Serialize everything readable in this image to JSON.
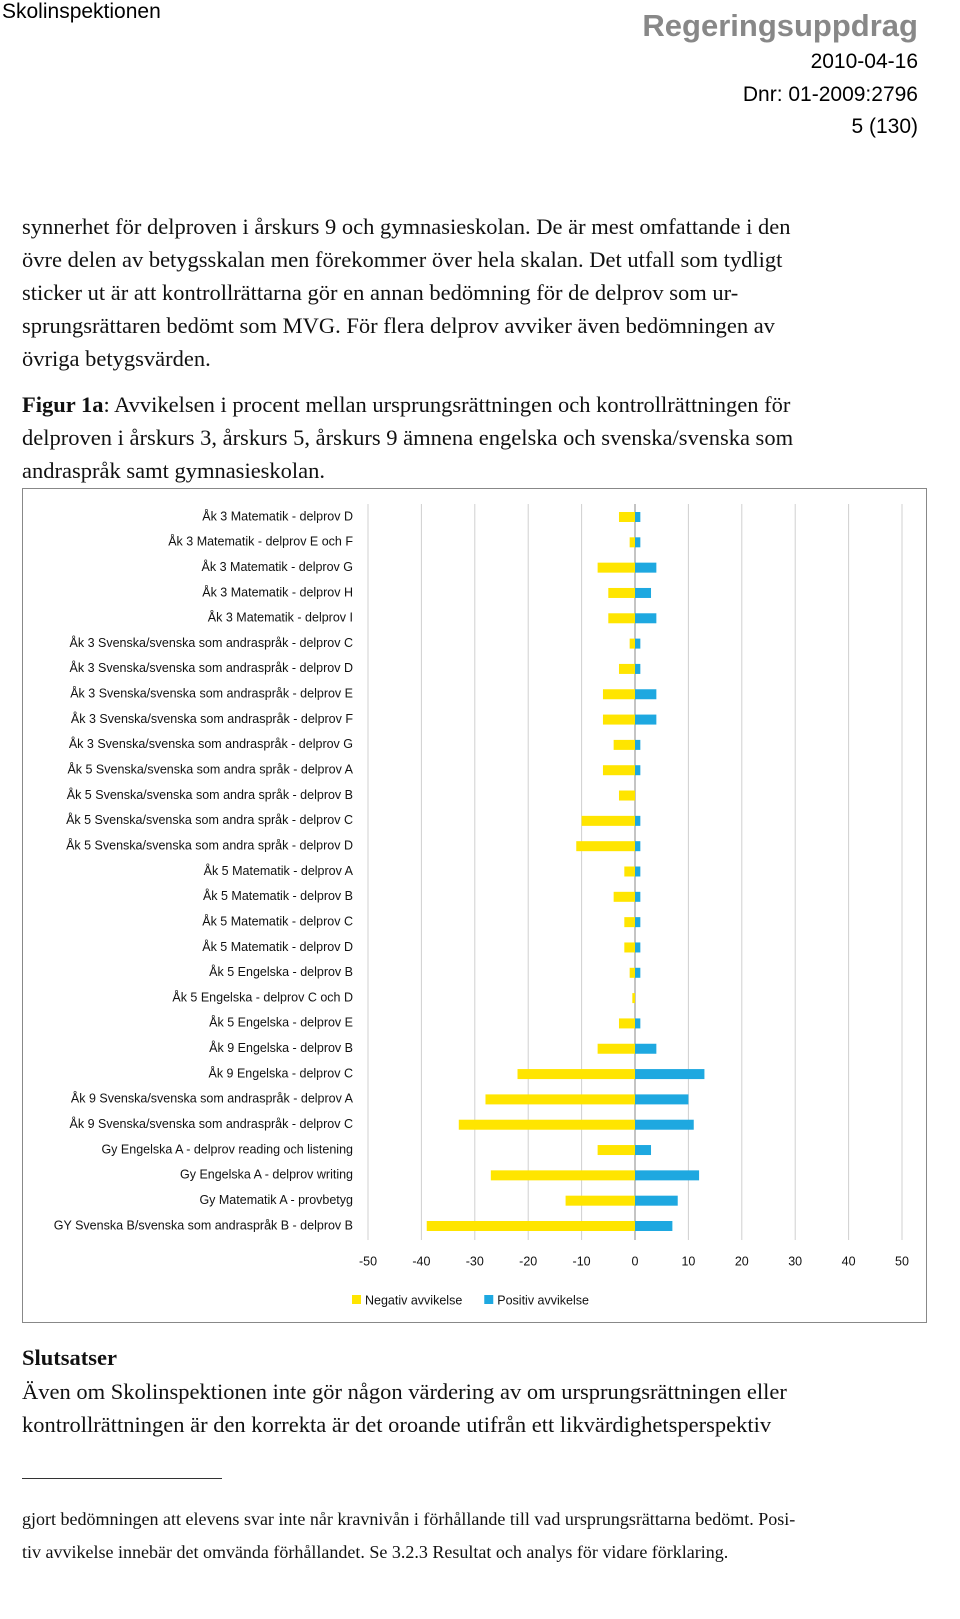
{
  "header": {
    "organization": "Skolinspektionen",
    "title": "Regeringsuppdrag",
    "date": "2010-04-16",
    "dnr": "Dnr: 01-2009:2796",
    "page": "5 (130)"
  },
  "paragraph": {
    "lines": [
      "synnerhet för delproven i årskurs 9 och gymnasieskolan. De är mest omfattande i den",
      "övre delen av betygsskalan men förekommer över hela skalan. Det utfall som tydligt",
      "sticker ut är att kontrollrättarna gör en annan bedömning för de delprov som ur-",
      "sprungsrättaren bedömt som MVG. För flera delprov avviker även bedömningen av",
      "övriga betygsvärden."
    ]
  },
  "caption": {
    "label": "Figur 1a",
    "lines": [
      ": Avvikelsen i procent mellan ursprungsrättningen och kontrollrättningen för",
      "delproven i årskurs 3, årskurs 5, årskurs 9 ämnena engelska och svenska/svenska som",
      "andraspråk samt gymnasieskolan."
    ]
  },
  "chart_data": {
    "type": "bar",
    "orientation": "horizontal",
    "categories": [
      "Åk 3 Matematik  - delprov D",
      "Åk 3 Matematik  - delprov E och F",
      "Åk 3 Matematik  - delprov G",
      "Åk 3 Matematik  - delprov H",
      "Åk 3 Matematik  - delprov I",
      "Åk 3 Svenska/svenska som andraspråk - delprov C",
      "Åk 3 Svenska/svenska som andraspråk - delprov D",
      "Åk 3 Svenska/svenska som andraspråk - delprov E",
      "Åk 3 Svenska/svenska som andraspråk - delprov F",
      "Åk 3 Svenska/svenska som andraspråk - delprov G",
      "Åk 5 Svenska/svenska som andra språk - delprov A",
      "Åk 5 Svenska/svenska som andra språk - delprov B",
      "Åk 5 Svenska/svenska som andra språk - delprov C",
      "Åk 5 Svenska/svenska som andra språk - delprov D",
      "Åk 5 Matematik  - delprov A",
      "Åk 5 Matematik  - delprov B",
      "Åk 5 Matematik  - delprov C",
      "Åk 5 Matematik  - delprov D",
      "Åk 5 Engelska - delprov B",
      "Åk 5  Engelska - delprov C och D",
      "Åk 5 Engelska - delprov E",
      "Åk 9 Engelska - delprov B",
      "Åk 9 Engelska - delprov C",
      "Åk 9 Svenska/svenska som andraspråk - delprov A",
      "Åk 9 Svenska/svenska som andraspråk - delprov C",
      "Gy Engelska  A - delprov reading  och listening",
      "Gy Engelska  A - delprov writing",
      "Gy Matematik  A - provbetyg",
      "GY Svenska B/svenska som andraspråk  B - delprov B"
    ],
    "series": [
      {
        "name": "Negativ avvikelse",
        "color": "#ffe500",
        "values": [
          -3,
          -1,
          -7,
          -5,
          -5,
          -1,
          -3,
          -6,
          -6,
          -4,
          -6,
          -3,
          -10,
          -11,
          -2,
          -4,
          -2,
          -2,
          -1,
          -0.5,
          -3,
          -7,
          -22,
          -28,
          -33,
          -7,
          -27,
          -13,
          -39
        ]
      },
      {
        "name": "Positiv avvikelse",
        "color": "#1ea8e0",
        "values": [
          1,
          1,
          4,
          3,
          4,
          1,
          1,
          4,
          4,
          1,
          1,
          0,
          1,
          1,
          1,
          1,
          1,
          1,
          1,
          0,
          1,
          4,
          13,
          10,
          11,
          3,
          12,
          8,
          7
        ]
      }
    ],
    "xlim": [
      -50,
      50
    ],
    "xticks": [
      -50,
      -40,
      -30,
      -20,
      -10,
      0,
      10,
      20,
      30,
      40,
      50
    ],
    "grid": true,
    "legend": "bottom"
  },
  "conclusion": {
    "heading": "Slutsatser",
    "lines": [
      "Även om Skolinspektionen inte gör någon värdering av om ursprungsrättningen eller",
      "kontrollrättningen är den korrekta är det oroande utifrån ett likvärdighetsperspektiv"
    ]
  },
  "footnote": {
    "lines": [
      "gjort bedömningen att elevens svar inte når kravnivån i förhållande till vad ursprungsrättarna bedömt. Posi-",
      "tiv avvikelse innebär det omvända förhållandet. Se 3.2.3 Resultat och analys för vidare förklaring."
    ]
  }
}
